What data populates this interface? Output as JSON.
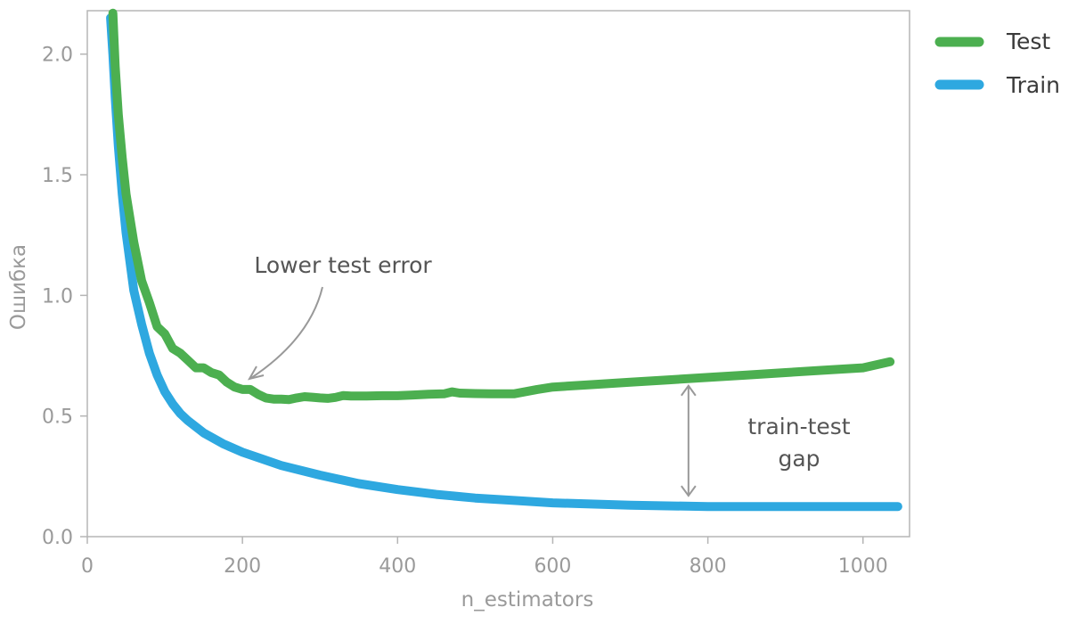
{
  "chart_data": {
    "type": "line",
    "xlabel": "n_estimators",
    "ylabel": "Ошибка",
    "xlim": [
      0,
      1060
    ],
    "ylim": [
      0,
      2.18
    ],
    "xticks": [
      0,
      200,
      400,
      600,
      800,
      1000
    ],
    "yticks": [
      0.0,
      0.5,
      1.0,
      1.5,
      2.0
    ],
    "xtick_labels": [
      "0",
      "200",
      "400",
      "600",
      "800",
      "1000"
    ],
    "ytick_labels": [
      "0.0",
      "0.5",
      "1.0",
      "1.5",
      "2.0"
    ],
    "grid": false,
    "legend": "top-right, outside",
    "series": [
      {
        "name": "Test",
        "color": "#4caf50",
        "x": [
          33,
          36,
          40,
          45,
          50,
          60,
          70,
          80,
          90,
          100,
          110,
          120,
          130,
          140,
          150,
          160,
          170,
          180,
          190,
          200,
          210,
          220,
          230,
          240,
          250,
          260,
          270,
          280,
          290,
          300,
          310,
          320,
          330,
          340,
          350,
          360,
          380,
          400,
          420,
          440,
          460,
          470,
          480,
          500,
          520,
          550,
          580,
          600,
          650,
          700,
          750,
          800,
          850,
          900,
          950,
          1000,
          1035
        ],
        "y": [
          2.17,
          1.95,
          1.75,
          1.57,
          1.42,
          1.22,
          1.06,
          0.97,
          0.87,
          0.84,
          0.78,
          0.76,
          0.73,
          0.7,
          0.7,
          0.68,
          0.67,
          0.64,
          0.62,
          0.61,
          0.61,
          0.59,
          0.575,
          0.57,
          0.57,
          0.568,
          0.575,
          0.58,
          0.578,
          0.575,
          0.573,
          0.577,
          0.585,
          0.583,
          0.583,
          0.583,
          0.584,
          0.584,
          0.587,
          0.59,
          0.592,
          0.6,
          0.595,
          0.593,
          0.592,
          0.592,
          0.61,
          0.62,
          0.63,
          0.64,
          0.65,
          0.66,
          0.67,
          0.68,
          0.69,
          0.7,
          0.725
        ]
      },
      {
        "name": "Train",
        "color": "#2ea8e0",
        "x": [
          30,
          33,
          36,
          40,
          45,
          50,
          60,
          70,
          80,
          90,
          100,
          110,
          120,
          130,
          150,
          175,
          200,
          250,
          300,
          350,
          400,
          450,
          500,
          550,
          600,
          700,
          800,
          900,
          1000,
          1045
        ],
        "y": [
          2.15,
          2.0,
          1.82,
          1.62,
          1.42,
          1.26,
          1.02,
          0.88,
          0.76,
          0.67,
          0.6,
          0.55,
          0.51,
          0.48,
          0.43,
          0.385,
          0.35,
          0.295,
          0.255,
          0.22,
          0.195,
          0.175,
          0.16,
          0.15,
          0.14,
          0.13,
          0.125,
          0.125,
          0.125,
          0.125
        ]
      }
    ],
    "annotations": [
      {
        "id": "lower",
        "text": "Lower test error",
        "xy": [
          245,
          0.655
        ]
      },
      {
        "id": "gap",
        "lines": [
          "train-test",
          "gap"
        ],
        "x": 775,
        "y_from": 0.14,
        "y_to": 0.655
      }
    ]
  }
}
